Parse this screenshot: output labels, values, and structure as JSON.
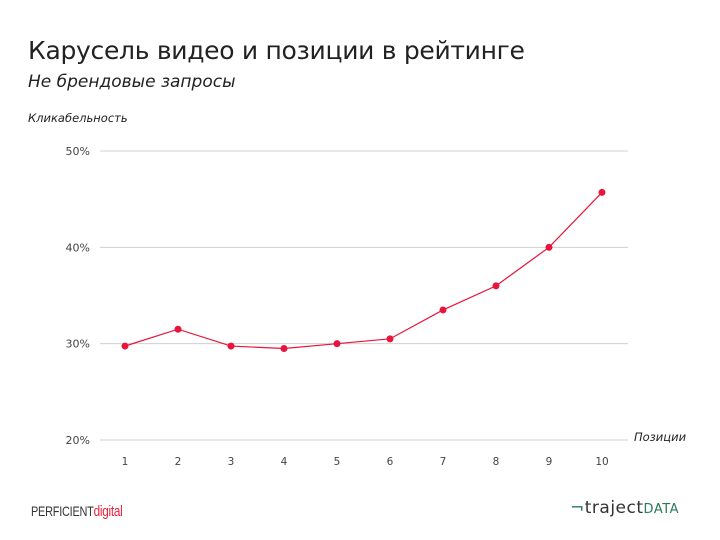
{
  "title": "Карусель видео и позиции в рейтинге",
  "subtitle": "Не брендовые запросы",
  "chart_data": {
    "type": "line",
    "ylabel": "Кликабельность",
    "xlabel": "Позиции",
    "categories": [
      "1",
      "2",
      "3",
      "4",
      "5",
      "6",
      "7",
      "8",
      "9",
      "10"
    ],
    "values": [
      29.75,
      31.5,
      29.75,
      29.5,
      30.0,
      30.5,
      33.5,
      36.0,
      40.0,
      45.7
    ],
    "ylim": [
      20,
      50
    ],
    "yticks": [
      "20%",
      "30%",
      "40%",
      "50%"
    ],
    "grid": true,
    "color": "#e8143c"
  },
  "logos": {
    "left_prefix": "PERFICIENT",
    "left_suffix": "digital",
    "right_mark": "¬",
    "right_main": "traject",
    "right_suffix": "DATA"
  }
}
